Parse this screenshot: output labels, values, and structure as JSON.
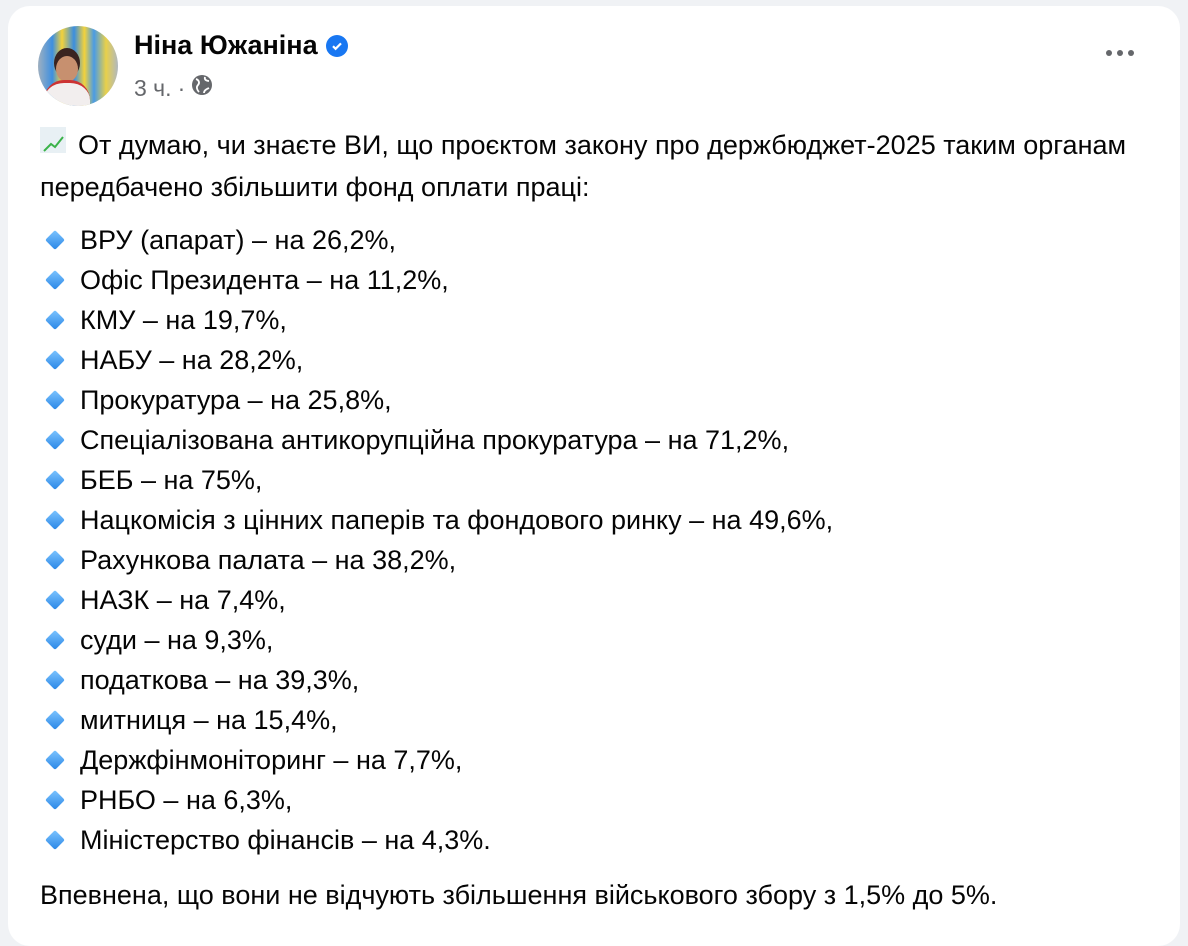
{
  "post": {
    "author": "Ніна Южаніна",
    "verified": true,
    "time": "3 ч.",
    "separator": "·",
    "audience_icon": "globe-icon",
    "intro_emoji": "chart-increasing-icon",
    "intro": "От думаю, чи знаєте ВИ, що проєктом закону про держбюджет-2025 таким органам передбачено збільшити фонд оплати праці:",
    "bullet_icon": "small-blue-diamond-icon",
    "items": [
      "ВРУ (апарат) – на 26,2%,",
      "Офіс Президента – на 11,2%,",
      "КМУ – на 19,7%,",
      "НАБУ – на 28,2%,",
      "Прокуратура – на 25,8%,",
      "Спеціалізована антикорупційна прокуратура – на 71,2%,",
      "БЕБ – на 75%,",
      "Нацкомісія з цінних паперів та фондового ринку – на 49,6%,",
      "Рахункова палата – на 38,2%,",
      "НАЗК – на 7,4%,",
      "суди – на 9,3%,",
      "податкова – на 39,3%,",
      "митниця – на 15,4%,",
      "Держфінмоніторинг – на 7,7%,",
      "РНБО – на 6,3%,",
      "Міністерство фінансів – на 4,3%."
    ],
    "outro": "Впевнена, що вони не відчують збільшення військового збору з 1,5% до 5%."
  },
  "colors": {
    "accent": "#1877f2",
    "secondary_text": "#65676b",
    "background": "#f0f2f5"
  }
}
